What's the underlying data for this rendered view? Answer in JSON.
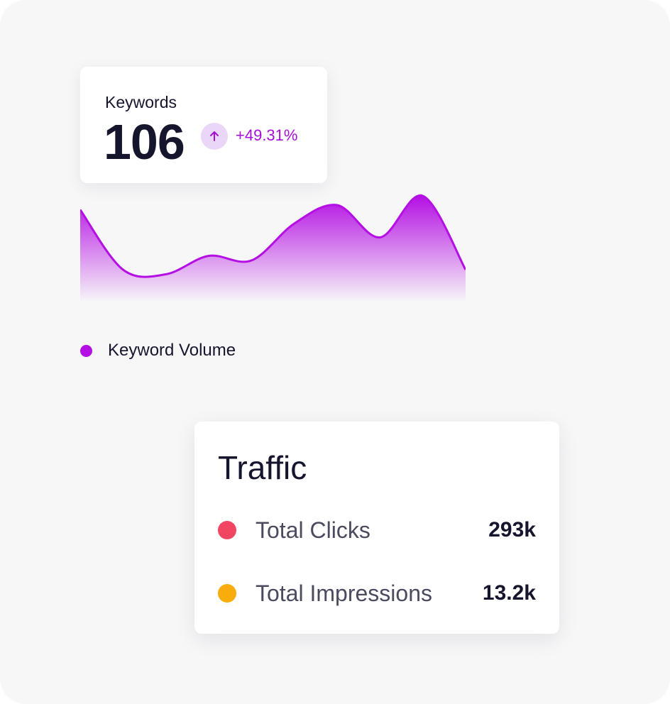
{
  "keywords_card": {
    "label": "Keywords",
    "value": "106",
    "change": "+49.31%",
    "trend_icon": "arrow-up-icon",
    "accent_color": "#a50fd6",
    "badge_color": "#ead6f7"
  },
  "chart_data": {
    "type": "area",
    "series": [
      {
        "values": [
          85,
          20,
          15,
          35,
          30,
          70,
          90,
          55,
          100,
          20
        ]
      }
    ],
    "ylim": [
      0,
      120
    ],
    "grid": false,
    "color": "#b40fe3"
  },
  "legend": {
    "label": "Keyword Volume",
    "color": "#b40fe3"
  },
  "traffic": {
    "title": "Traffic",
    "rows": [
      {
        "label": "Total Clicks",
        "value": "293k",
        "color": "#f24562"
      },
      {
        "label": "Total Impressions",
        "value": "13.2k",
        "color": "#f9ad0d"
      }
    ]
  }
}
